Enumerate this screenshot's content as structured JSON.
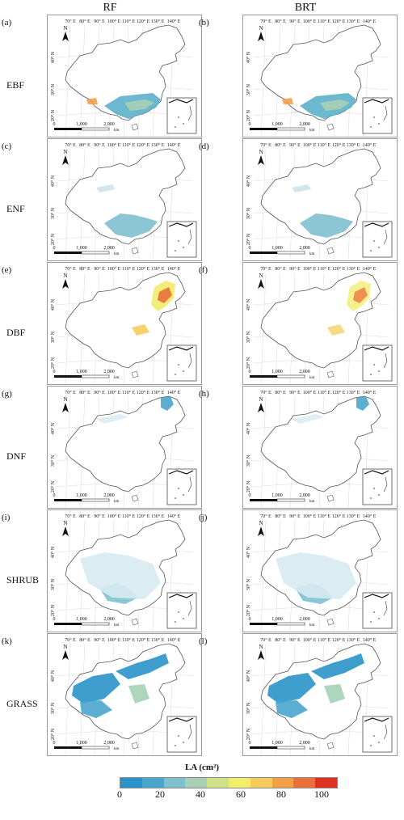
{
  "columns": [
    "RF",
    "BRT"
  ],
  "rows": [
    {
      "name": "EBF",
      "labels": [
        "(a)",
        "(b)"
      ]
    },
    {
      "name": "ENF",
      "labels": [
        "(c)",
        "(d)"
      ]
    },
    {
      "name": "DBF",
      "labels": [
        "(e)",
        "(f)"
      ]
    },
    {
      "name": "DNF",
      "labels": [
        "(g)",
        "(h)"
      ]
    },
    {
      "name": "SHRUB",
      "labels": [
        "(i)",
        "(j)"
      ]
    },
    {
      "name": "GRASS",
      "labels": [
        "(k)",
        "(l)"
      ]
    }
  ],
  "longitude_labels": [
    "70° E",
    "80° E",
    "90° E",
    "100° E",
    "110° E",
    "120° E",
    "130° E",
    "140° E"
  ],
  "latitude_labels": [
    "20° N",
    "30° N",
    "40° N"
  ],
  "north_label": "N",
  "scale_bar": {
    "labels": [
      "0",
      "1,000",
      "2,000"
    ],
    "unit": "km"
  },
  "legend": {
    "title": "LA (cm²)",
    "ticks": [
      "0",
      "20",
      "40",
      "60",
      "80",
      "100"
    ],
    "colors": [
      "#2a93c9",
      "#4aa6cd",
      "#7fbfcf",
      "#a7d0b6",
      "#cfe08a",
      "#f2ec6b",
      "#f6cc5c",
      "#f2a046",
      "#e8703a",
      "#dd3222"
    ]
  }
}
